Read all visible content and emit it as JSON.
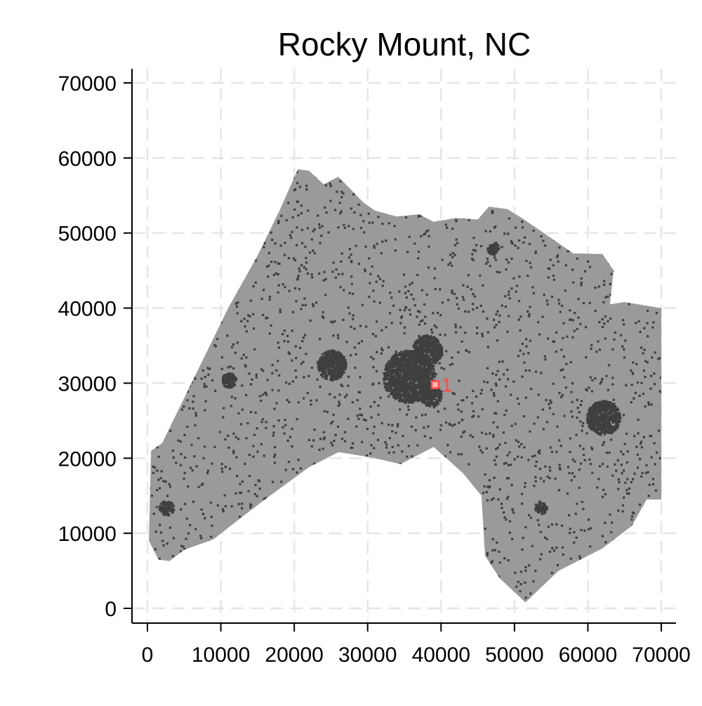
{
  "chart_data": {
    "type": "scatter",
    "title": "Rocky Mount, NC",
    "xlabel": "",
    "ylabel": "",
    "xlim": [
      -2000,
      71000
    ],
    "ylim": [
      -2000,
      71500
    ],
    "x_ticks": [
      0,
      10000,
      20000,
      30000,
      40000,
      50000,
      60000,
      70000
    ],
    "y_ticks": [
      0,
      10000,
      20000,
      30000,
      40000,
      50000,
      60000,
      70000
    ],
    "x_tick_labels": [
      "0",
      "10000",
      "20000",
      "30000",
      "40000",
      "50000",
      "60000",
      "70000"
    ],
    "y_tick_labels": [
      "0",
      "10000",
      "20000",
      "30000",
      "40000",
      "50000",
      "60000",
      "70000"
    ],
    "grid": true,
    "legend": "none",
    "colors": {
      "region_fill": "#9a9a9a",
      "developed_cells": "#3f3f3f",
      "marker": "#ff4a4a",
      "grid": "#e6e6e6"
    },
    "region_outline": [
      [
        200,
        9000
      ],
      [
        500,
        21000
      ],
      [
        2000,
        22000
      ],
      [
        5000,
        28000
      ],
      [
        8000,
        34000
      ],
      [
        11000,
        40000
      ],
      [
        15000,
        47000
      ],
      [
        18000,
        53000
      ],
      [
        20500,
        58500
      ],
      [
        22000,
        58300
      ],
      [
        24000,
        56500
      ],
      [
        26000,
        57500
      ],
      [
        28000,
        55500
      ],
      [
        29500,
        54000
      ],
      [
        31000,
        53000
      ],
      [
        34000,
        52200
      ],
      [
        37000,
        52500
      ],
      [
        39000,
        51500
      ],
      [
        42000,
        52000
      ],
      [
        45000,
        51800
      ],
      [
        46500,
        53500
      ],
      [
        49000,
        53200
      ],
      [
        51000,
        52000
      ],
      [
        54000,
        50000
      ],
      [
        58000,
        47300
      ],
      [
        62000,
        47200
      ],
      [
        63500,
        45000
      ],
      [
        63000,
        40500
      ],
      [
        65000,
        40800
      ],
      [
        70000,
        40000
      ],
      [
        70000,
        14500
      ],
      [
        68000,
        14500
      ],
      [
        66000,
        11000
      ],
      [
        62000,
        8000
      ],
      [
        56000,
        5000
      ],
      [
        51500,
        800
      ],
      [
        48000,
        4000
      ],
      [
        46000,
        7000
      ],
      [
        45500,
        15000
      ],
      [
        43000,
        18000
      ],
      [
        39000,
        21500
      ],
      [
        36000,
        20000
      ],
      [
        34500,
        19200
      ],
      [
        31000,
        20000
      ],
      [
        28000,
        20500
      ],
      [
        26000,
        20800
      ],
      [
        22000,
        18800
      ],
      [
        16000,
        14500
      ],
      [
        12000,
        11500
      ],
      [
        9000,
        9200
      ],
      [
        5000,
        7800
      ],
      [
        3000,
        6300
      ],
      [
        1500,
        6500
      ]
    ],
    "development_clusters": [
      {
        "x": 35500,
        "y": 31000,
        "radius": 3500
      },
      {
        "x": 38000,
        "y": 34500,
        "radius": 2000
      },
      {
        "x": 38500,
        "y": 28500,
        "radius": 1500
      },
      {
        "x": 25000,
        "y": 32500,
        "radius": 2000
      },
      {
        "x": 62000,
        "y": 25500,
        "radius": 2300
      },
      {
        "x": 11000,
        "y": 30500,
        "radius": 1000
      },
      {
        "x": 2500,
        "y": 13500,
        "radius": 1000
      },
      {
        "x": 47000,
        "y": 48000,
        "radius": 800
      },
      {
        "x": 53500,
        "y": 13500,
        "radius": 800
      }
    ],
    "points": [
      {
        "x": 39200,
        "y": 29800,
        "label": "1"
      }
    ]
  }
}
